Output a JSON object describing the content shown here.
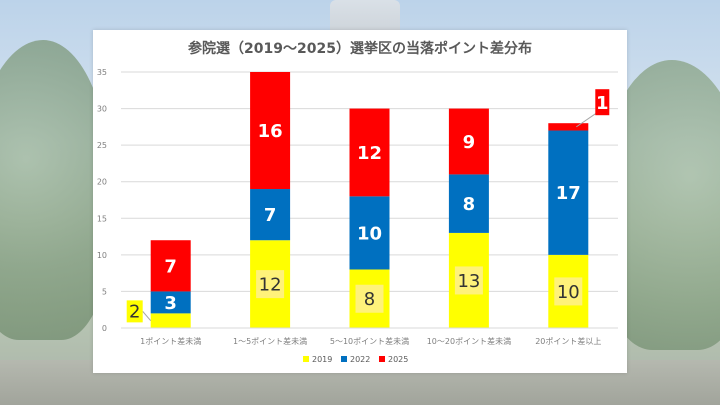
{
  "chart_data": {
    "type": "bar",
    "stacked": true,
    "title": "参院選（2019～2025）選挙区の当落ポイント差分布",
    "categories": [
      "1ポイント差未満",
      "1～5ポイント差未満",
      "5～10ポイント差未満",
      "10～20ポイント差未満",
      "20ポイント差以上"
    ],
    "series": [
      {
        "name": "2019",
        "color": "#FFFF00",
        "values": [
          2,
          12,
          8,
          13,
          10
        ]
      },
      {
        "name": "2022",
        "color": "#0070C0",
        "values": [
          3,
          7,
          10,
          8,
          17
        ]
      },
      {
        "name": "2025",
        "color": "#FF0000",
        "values": [
          7,
          16,
          12,
          9,
          1
        ]
      }
    ],
    "ylim": [
      0,
      35
    ],
    "yticks": [
      0,
      5,
      10,
      15,
      20,
      25,
      30,
      35
    ],
    "grid": true,
    "legend": "bottom",
    "xlabel": "",
    "ylabel": ""
  }
}
